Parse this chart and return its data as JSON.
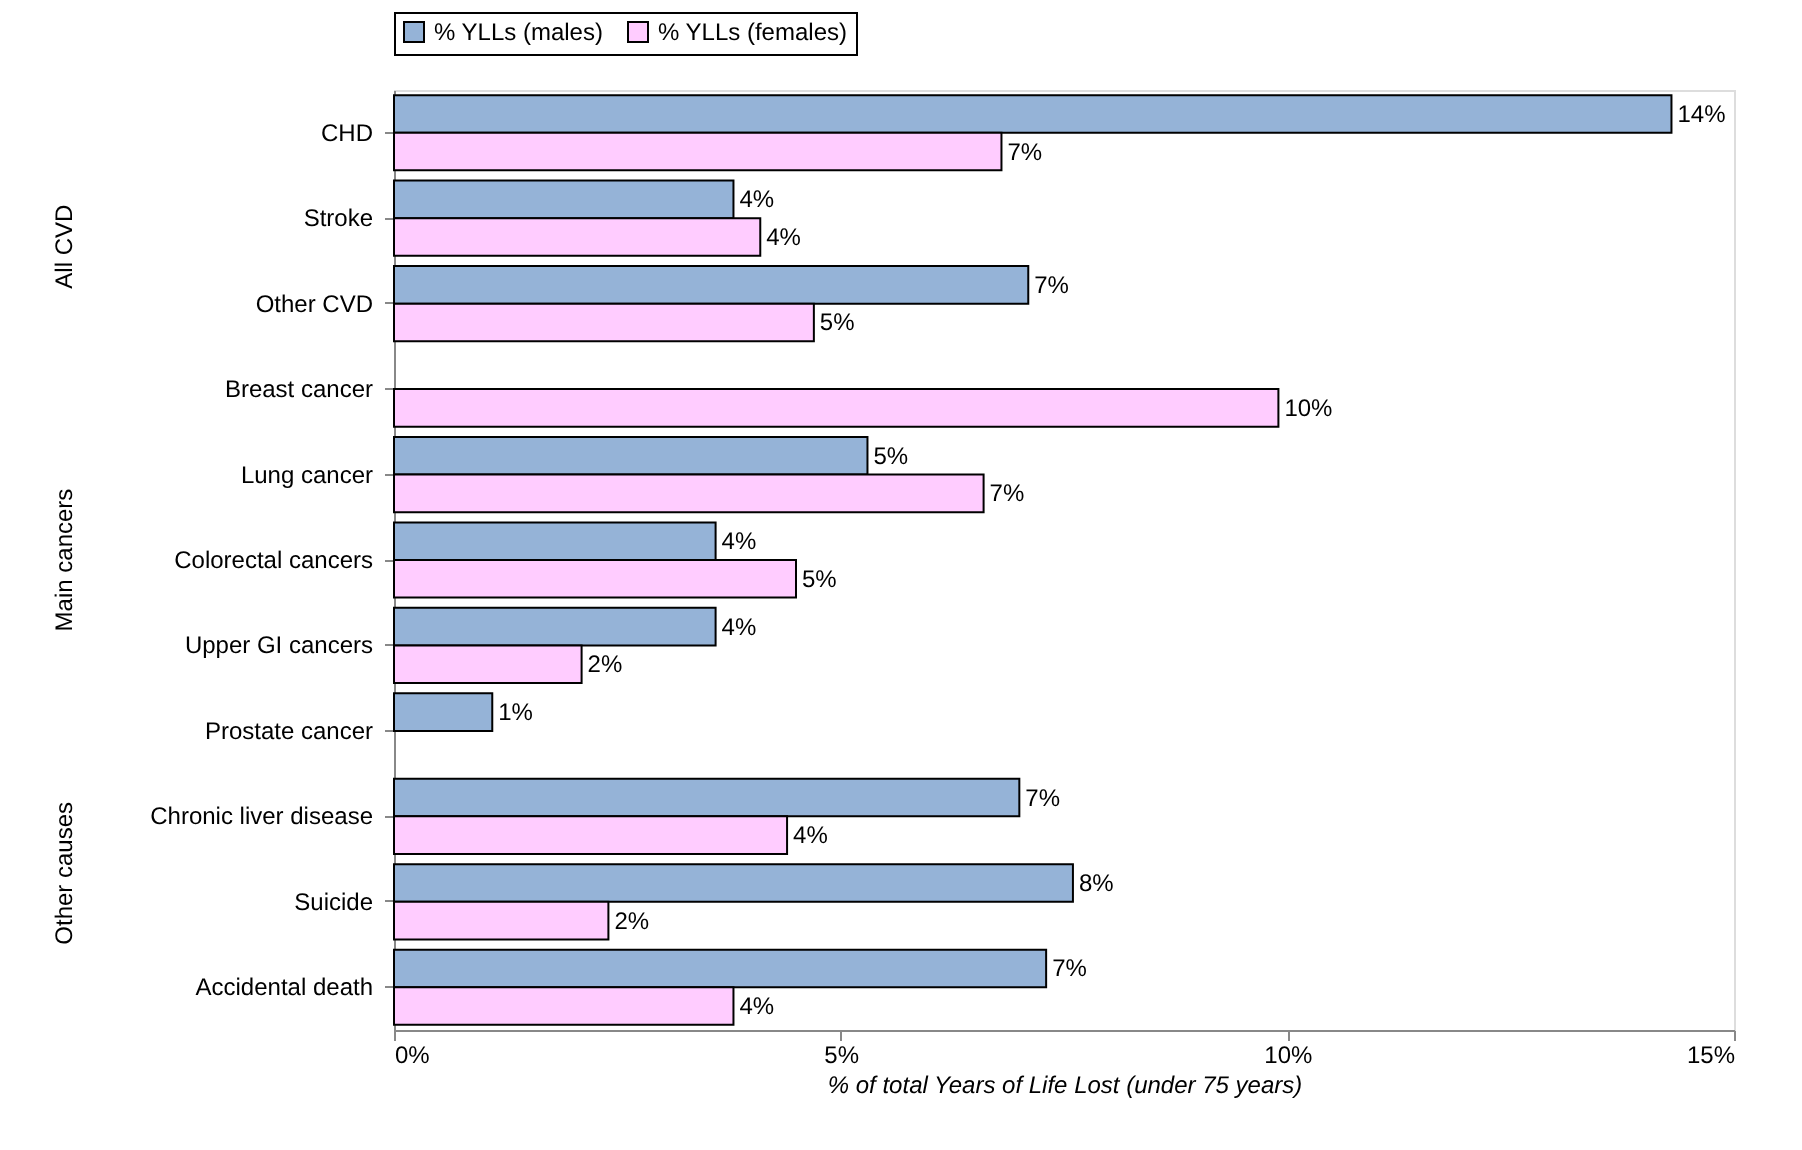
{
  "chart_data": {
    "type": "bar",
    "orientation": "horizontal",
    "xlabel": "% of total Years of Life Lost (under 75 years)",
    "categories": [
      "CHD",
      "Stroke",
      "Other CVD",
      "Breast cancer",
      "Lung cancer",
      "Colorectal cancers",
      "Upper GI cancers",
      "Prostate cancer",
      "Chronic liver disease",
      "Suicide",
      "Accidental death"
    ],
    "series": [
      {
        "name": "% YLLs (males)",
        "color": "#95b3d7",
        "values": [
          14.3,
          3.8,
          7.1,
          null,
          5.3,
          3.6,
          3.6,
          1.1,
          7.0,
          7.6,
          7.3
        ],
        "value_labels": [
          "14%",
          "4%",
          "7%",
          null,
          "5%",
          "4%",
          "4%",
          "1%",
          "7%",
          "8%",
          "7%"
        ]
      },
      {
        "name": "% YLLs (females)",
        "color": "#ffccff",
        "values": [
          6.8,
          4.1,
          4.7,
          9.9,
          6.6,
          4.5,
          2.1,
          null,
          4.4,
          2.4,
          3.8
        ],
        "value_labels": [
          "7%",
          "4%",
          "5%",
          "10%",
          "7%",
          "5%",
          "2%",
          null,
          "4%",
          "2%",
          "4%"
        ]
      }
    ],
    "xlim": [
      0,
      15
    ],
    "xticks": [
      {
        "value": 0,
        "label": "0%"
      },
      {
        "value": 5,
        "label": "5%"
      },
      {
        "value": 10,
        "label": "10%"
      },
      {
        "value": 15,
        "label": "15%"
      }
    ],
    "annotations": [
      "All CVD",
      "Main cancers",
      "Other causes"
    ],
    "grid": false,
    "legend": "top"
  }
}
